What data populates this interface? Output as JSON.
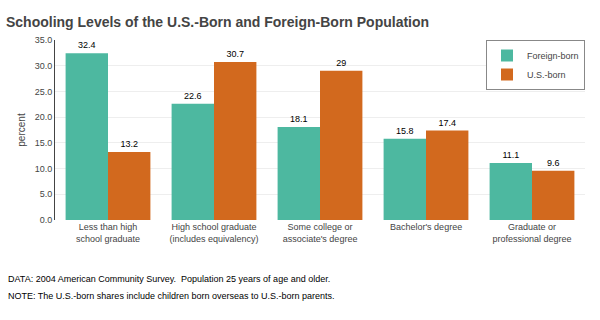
{
  "chart_data": {
    "type": "bar",
    "title": "Schooling Levels of the U.S.-Born and Foreign-Born Population",
    "categories": [
      "Less than high\nschool graduate",
      "High school graduate\n(includes equivalency)",
      "Some college or\nassociate's degree",
      "Bachelor's degree",
      "Graduate or\nprofessional degree"
    ],
    "series": [
      {
        "name": "Foreign-born",
        "color": "#4db8a0",
        "values": [
          32.4,
          22.6,
          18.1,
          15.8,
          11.1
        ]
      },
      {
        "name": "U.S.-born",
        "color": "#d2691e",
        "values": [
          13.2,
          30.7,
          29.0,
          17.4,
          9.6
        ]
      }
    ],
    "ylabel": "percent",
    "ylim": [
      0,
      35
    ],
    "yticks": [
      {
        "value": 0,
        "label": "0.0"
      },
      {
        "value": 5,
        "label": "5.0"
      },
      {
        "value": 10,
        "label": "10.0"
      },
      {
        "value": 15,
        "label": "15.0"
      },
      {
        "value": 20,
        "label": "20.0"
      },
      {
        "value": 25,
        "label": "25.0"
      },
      {
        "value": 30,
        "label": "30.0"
      },
      {
        "value": 35,
        "label": "35.0"
      }
    ],
    "grid": true,
    "legend": "upper right",
    "data_labels": true,
    "annotations": [
      "DATA: 2004 American Community Survey.  Population 25 years of age and older.",
      "NOTE: The U.S.-born shares include children born overseas to U.S.-born parents."
    ]
  }
}
